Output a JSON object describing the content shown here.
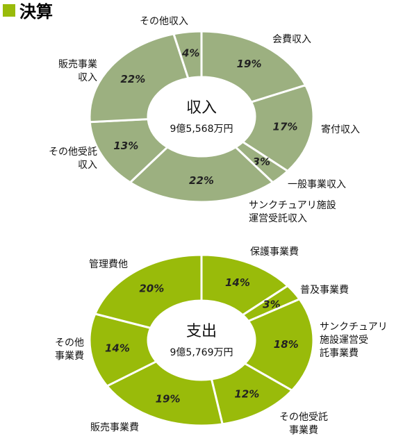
{
  "header": {
    "title": "決算"
  },
  "chart_data": [
    {
      "type": "pie",
      "title": "収入",
      "subtitle": "9億5,568万円",
      "color": "#9cb080",
      "categories": [
        "会費収入",
        "寄付収入",
        "一般事業収入",
        "サンクチュアリ施設\n運営受託収入",
        "その他受託\n収入",
        "販売事業\n収入",
        "その他収入"
      ],
      "values": [
        19,
        17,
        3,
        22,
        13,
        22,
        4
      ],
      "value_labels": [
        "19%",
        "17%",
        "3%",
        "22%",
        "13%",
        "22%",
        "4%"
      ]
    },
    {
      "type": "pie",
      "title": "支出",
      "subtitle": "9億5,769万円",
      "color": "#99bb0a",
      "categories": [
        "保護事業費",
        "普及事業費",
        "サンクチュアリ\n施設運営受\n託事業費",
        "その他受託\n事業費",
        "販売事業費",
        "その他\n事業費",
        "管理費他"
      ],
      "values": [
        14,
        3,
        18,
        12,
        19,
        14,
        20
      ],
      "value_labels": [
        "14%",
        "3%",
        "18%",
        "12%",
        "19%",
        "14%",
        "20%"
      ]
    }
  ]
}
